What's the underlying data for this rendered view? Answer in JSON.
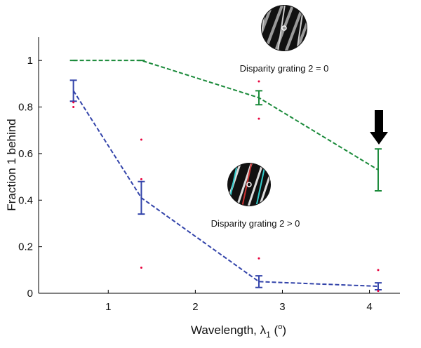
{
  "chart_data": {
    "type": "line",
    "x_label_parts": [
      "Wavelength, λ",
      "1",
      " (",
      "o",
      ")"
    ],
    "y_label": "Fraction 1 behind",
    "annotations": [
      "Disparity grating 2 = 0",
      "Disparity grating 2 > 0"
    ],
    "xlim": [
      0.2,
      4.35
    ],
    "ylim": [
      0,
      1.1
    ],
    "xticks": [
      1,
      2,
      3,
      4
    ],
    "yticks": [
      0,
      0.2,
      0.4,
      0.6,
      0.8,
      1
    ],
    "x": [
      0.6,
      1.38,
      2.73,
      4.1
    ],
    "series": [
      {
        "color": "#1a8a3a",
        "values": [
          1,
          1,
          0.84,
          0.53
        ],
        "errors": [
          0,
          0,
          0.03,
          0.09
        ]
      },
      {
        "color": "#3344aa",
        "values": [
          0.87,
          0.41,
          0.05,
          0.03
        ],
        "errors": [
          0.045,
          0.07,
          0.025,
          0.015
        ]
      }
    ],
    "trials": {
      "color": "#e8003c",
      "x": [
        0.6,
        0.6,
        1.38,
        1.38,
        1.38,
        2.73,
        2.73,
        2.73,
        4.1,
        4.1
      ],
      "values": [
        0.82,
        0.8,
        0.66,
        0.49,
        0.11,
        0.91,
        0.75,
        0.15,
        0.1,
        0.01
      ]
    }
  }
}
